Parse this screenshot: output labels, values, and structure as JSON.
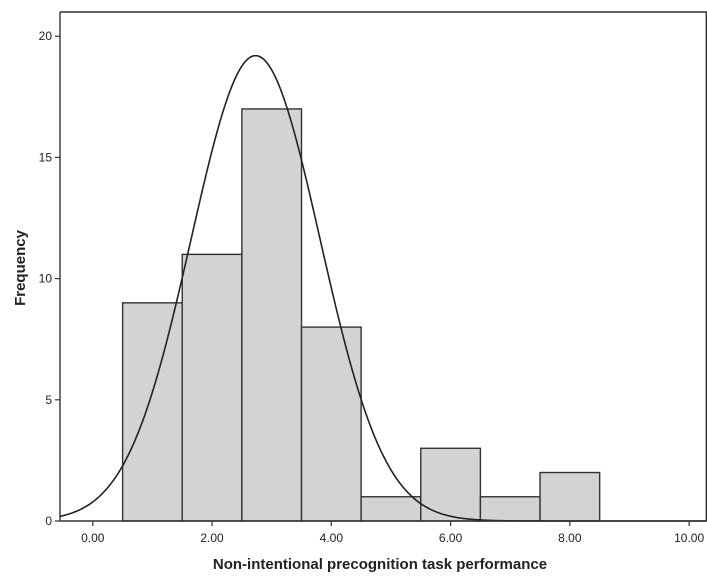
{
  "chart_data": {
    "type": "bar",
    "subtype": "histogram",
    "title": "",
    "xlabel": "Non-intentional precognition task performance",
    "ylabel": "Frequency",
    "bins": [
      {
        "start": 0.5,
        "end": 1.5,
        "count": 9
      },
      {
        "start": 1.5,
        "end": 2.5,
        "count": 11
      },
      {
        "start": 2.5,
        "end": 3.5,
        "count": 17
      },
      {
        "start": 3.5,
        "end": 4.5,
        "count": 8
      },
      {
        "start": 4.5,
        "end": 5.5,
        "count": 1
      },
      {
        "start": 5.5,
        "end": 6.5,
        "count": 3
      },
      {
        "start": 6.5,
        "end": 7.5,
        "count": 1
      },
      {
        "start": 7.5,
        "end": 8.5,
        "count": 2
      }
    ],
    "normal_curve": {
      "peak_x": 2.73,
      "peak_y": 19.2,
      "sd": 1.08
    },
    "xlim": [
      -0.55,
      10.3
    ],
    "ylim": [
      0,
      21
    ],
    "xticks": [
      {
        "value": 0,
        "label": "0.00"
      },
      {
        "value": 2,
        "label": "2.00"
      },
      {
        "value": 4,
        "label": "4.00"
      },
      {
        "value": 6,
        "label": "6.00"
      },
      {
        "value": 8,
        "label": "8.00"
      },
      {
        "value": 10,
        "label": "10.00"
      }
    ],
    "yticks": [
      {
        "value": 0,
        "label": "0"
      },
      {
        "value": 5,
        "label": "5"
      },
      {
        "value": 10,
        "label": "10"
      },
      {
        "value": 15,
        "label": "15"
      },
      {
        "value": 20,
        "label": "20"
      }
    ],
    "grid": false,
    "legend": "none",
    "colors": {
      "bar_fill": "#d3d3d3",
      "bar_stroke": "#333333",
      "curve": "#222222",
      "axis": "#333333"
    }
  }
}
